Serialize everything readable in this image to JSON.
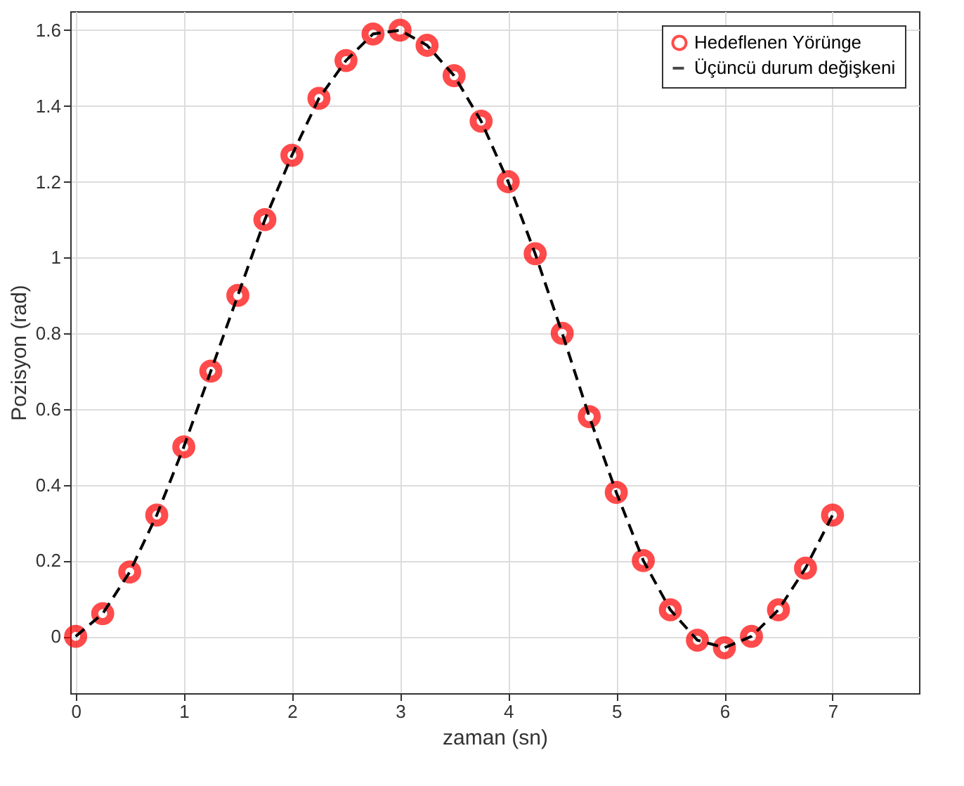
{
  "chart_data": {
    "type": "line",
    "xlabel": "zaman (sn)",
    "ylabel": "Pozisyon (rad)",
    "x": [
      0,
      0.25,
      0.5,
      0.75,
      1,
      1.25,
      1.5,
      1.75,
      2,
      2.25,
      2.5,
      2.75,
      3,
      3.25,
      3.5,
      3.75,
      4,
      4.25,
      4.5,
      4.75,
      5,
      5.25,
      5.5,
      5.75,
      6,
      6.25,
      6.5,
      6.75,
      7
    ],
    "series": [
      {
        "name": "Hedeflenen Yörünge",
        "type": "scatter",
        "marker": "circle",
        "color": "#ff0000",
        "values": [
          0,
          0.06,
          0.17,
          0.32,
          0.5,
          0.7,
          0.9,
          1.1,
          1.27,
          1.42,
          1.52,
          1.59,
          1.6,
          1.56,
          1.48,
          1.36,
          1.2,
          1.01,
          0.8,
          0.58,
          0.38,
          0.2,
          0.07,
          -0.01,
          -0.03,
          0,
          0.07,
          0.18,
          0.32
        ]
      },
      {
        "name": "Üçüncü durum değişkeni",
        "line_style": "dashed",
        "color": "#000000",
        "values": [
          0,
          0.06,
          0.17,
          0.32,
          0.5,
          0.7,
          0.9,
          1.1,
          1.27,
          1.42,
          1.52,
          1.59,
          1.6,
          1.56,
          1.48,
          1.36,
          1.2,
          1.01,
          0.8,
          0.58,
          0.38,
          0.2,
          0.07,
          -0.01,
          -0.03,
          0,
          0.07,
          0.18,
          0.32
        ]
      }
    ],
    "xlim": [
      -0.05,
      7.8
    ],
    "xticks": [
      0,
      1,
      2,
      3,
      4,
      5,
      6,
      7
    ],
    "ylim": [
      -0.15,
      1.65
    ],
    "yticks": [
      0,
      0.2,
      0.4,
      0.6,
      0.8,
      1,
      1.2,
      1.4,
      1.6
    ],
    "grid": true,
    "legend": "top right"
  }
}
